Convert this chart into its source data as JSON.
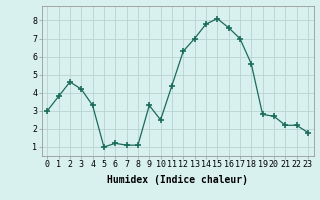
{
  "x": [
    0,
    1,
    2,
    3,
    4,
    5,
    6,
    7,
    8,
    9,
    10,
    11,
    12,
    13,
    14,
    15,
    16,
    17,
    18,
    19,
    20,
    21,
    22,
    23
  ],
  "y": [
    3.0,
    3.8,
    4.6,
    4.2,
    3.3,
    1.0,
    1.2,
    1.1,
    1.1,
    3.3,
    2.5,
    4.4,
    6.3,
    7.0,
    7.8,
    8.1,
    7.6,
    7.0,
    5.6,
    2.8,
    2.7,
    2.2,
    2.2,
    1.8
  ],
  "line_color": "#1a6b5a",
  "marker": "+",
  "marker_size": 4,
  "bg_color": "#d8f0ee",
  "grid_color": "#b8d4d0",
  "xlabel": "Humidex (Indice chaleur)",
  "xlim": [
    -0.5,
    23.5
  ],
  "ylim": [
    0.5,
    8.8
  ],
  "xtick_labels": [
    "0",
    "1",
    "2",
    "3",
    "4",
    "5",
    "6",
    "7",
    "8",
    "9",
    "10",
    "11",
    "12",
    "13",
    "14",
    "15",
    "16",
    "17",
    "18",
    "19",
    "20",
    "21",
    "22",
    "23"
  ],
  "ytick_values": [
    1,
    2,
    3,
    4,
    5,
    6,
    7,
    8
  ],
  "label_fontsize": 7,
  "tick_fontsize": 6
}
